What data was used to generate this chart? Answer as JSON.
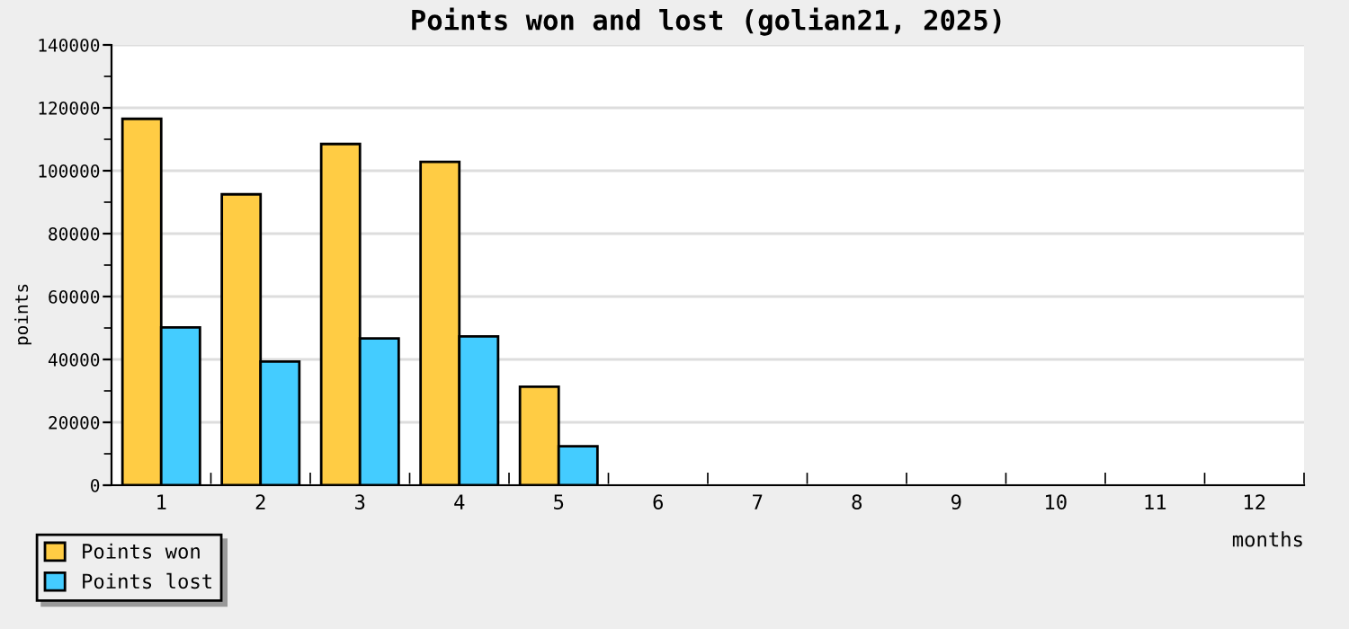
{
  "chart_data": {
    "type": "bar",
    "title": "Points won and lost (golian21, 2025)",
    "xlabel": "months",
    "ylabel": "points",
    "categories": [
      "1",
      "2",
      "3",
      "4",
      "5",
      "6",
      "7",
      "8",
      "9",
      "10",
      "11",
      "12"
    ],
    "series": [
      {
        "name": "Points won",
        "color": "#ffcc44",
        "values": [
          116500,
          92500,
          108500,
          102800,
          31300,
          null,
          null,
          null,
          null,
          null,
          null,
          null
        ]
      },
      {
        "name": "Points lost",
        "color": "#44ccff",
        "values": [
          50200,
          39300,
          46700,
          47300,
          12400,
          null,
          null,
          null,
          null,
          null,
          null,
          null
        ]
      }
    ],
    "ylim": [
      0,
      140000
    ],
    "yticks": [
      0,
      20000,
      40000,
      60000,
      80000,
      100000,
      120000,
      140000
    ],
    "grid": "y",
    "legend": "bottom left"
  }
}
